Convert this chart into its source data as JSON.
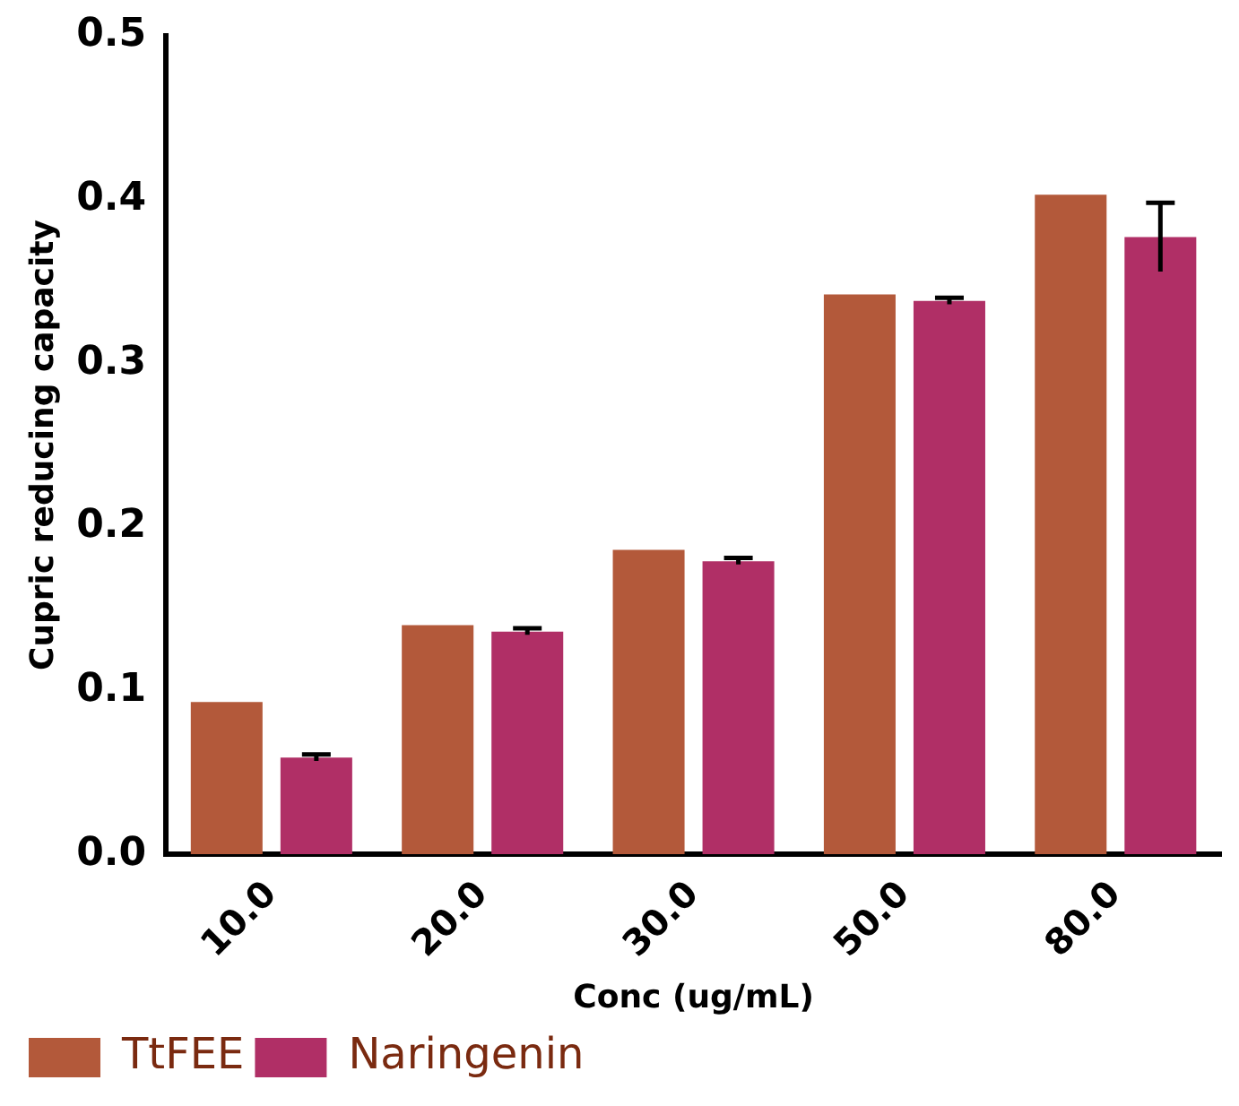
{
  "chart_data": {
    "type": "bar",
    "xlabel": "Conc (ug/mL)",
    "ylabel": "Cupric reducing capacity",
    "categories": [
      "10.0",
      "20.0",
      "30.0",
      "50.0",
      "80.0"
    ],
    "series": [
      {
        "name": "TtFEE",
        "color": "#b3593a",
        "values": [
          0.093,
          0.14,
          0.186,
          0.342,
          0.403
        ]
      },
      {
        "name": "Naringenin",
        "color": "#b02f66",
        "values": [
          0.059,
          0.136,
          0.179,
          0.338,
          0.377
        ],
        "errors": [
          0.002,
          0.002,
          0.002,
          0.002,
          0.021
        ]
      }
    ],
    "ylim": [
      0,
      0.5
    ],
    "yticks": [
      {
        "value": 0,
        "label": "0.0"
      },
      {
        "value": 0.1,
        "label": "0.1"
      },
      {
        "value": 0.2,
        "label": "0.2"
      },
      {
        "value": 0.3,
        "label": "0.3"
      },
      {
        "value": 0.4,
        "label": "0.4"
      },
      {
        "value": 0.5,
        "label": "0.5"
      }
    ],
    "grid": false,
    "legend": "bottom left"
  }
}
